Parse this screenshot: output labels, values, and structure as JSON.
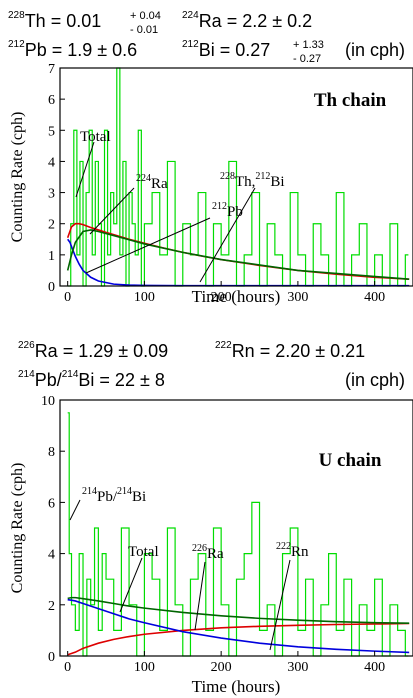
{
  "chart_data": [
    {
      "type": "line",
      "chain_label": "Th chain",
      "xlabel": "Time (hours)",
      "ylabel": "Counting Rate (cph)",
      "xlim": [
        -10,
        450
      ],
      "ylim": [
        0,
        7
      ],
      "xticks": [
        "0",
        "100",
        "200",
        "300",
        "400"
      ],
      "yticks": [
        "0",
        "1",
        "2",
        "3",
        "4",
        "5",
        "6",
        "7"
      ],
      "results": {
        "th228_name": "Th",
        "th228_mass": "228",
        "th228_value": " = 0.01",
        "th228_err_plus": "+ 0.04",
        "th228_err_minus": "- 0.01",
        "ra224_name": "Ra",
        "ra224_mass": "224",
        "ra224_value": " = 2.2 ± 0.2",
        "pb212_name": "Pb",
        "pb212_mass": "212",
        "pb212_value": " = 1.9 ± 0.6",
        "bi212_name": "Bi",
        "bi212_mass": "212",
        "bi212_value": " = 0.27",
        "bi212_err_plus": "+ 1.33",
        "bi212_err_minus": "- 0.27",
        "unit_note": "(in cph)"
      },
      "annotations": {
        "total": "Total",
        "ra_mass": "224",
        "ra": "Ra",
        "pb_mass": "212",
        "pb": "Pb",
        "th_mass": "228",
        "th": "Th,",
        "bi_mass": "212",
        "bi": "Bi"
      },
      "series": [
        {
          "color": "#00dd00",
          "x": [
            0,
            4,
            8,
            12,
            16,
            20,
            24,
            28,
            32,
            36,
            40,
            44,
            48,
            52,
            56,
            60,
            64,
            68,
            72,
            76,
            80,
            84,
            88,
            92,
            96,
            100,
            110,
            120,
            130,
            140,
            150,
            160,
            170,
            180,
            190,
            200,
            210,
            220,
            230,
            240,
            250,
            260,
            270,
            280,
            290,
            300,
            310,
            320,
            330,
            340,
            350,
            360,
            370,
            380,
            390,
            400,
            410,
            420,
            430,
            440
          ],
          "y": [
            0,
            2,
            5,
            1,
            4,
            0,
            3,
            5,
            1,
            4,
            2,
            0,
            5,
            1,
            3,
            2,
            7,
            1,
            4,
            0,
            3,
            2,
            1,
            5,
            0,
            2,
            3,
            1,
            4,
            0,
            2,
            1,
            3,
            0,
            2,
            1,
            4,
            0,
            1,
            3,
            0,
            2,
            1,
            0,
            3,
            1,
            0,
            2,
            1,
            0,
            3,
            0,
            1,
            2,
            0,
            1,
            0,
            2,
            0,
            1
          ]
        },
        {
          "color": "#dd0000",
          "x": [
            0,
            5,
            10,
            15,
            20,
            30,
            40,
            50,
            60,
            80,
            100,
            125,
            150,
            175,
            200,
            250,
            300,
            350,
            400,
            445
          ],
          "y": [
            1.55,
            1.9,
            2.0,
            2.0,
            1.97,
            1.88,
            1.8,
            1.72,
            1.65,
            1.5,
            1.37,
            1.22,
            1.08,
            0.96,
            0.85,
            0.66,
            0.5,
            0.38,
            0.28,
            0.22
          ]
        },
        {
          "color": "#0000dd",
          "x": [
            0,
            3,
            6,
            10,
            15,
            20,
            30,
            40,
            60,
            80,
            100,
            150,
            200,
            445
          ],
          "y": [
            1.5,
            1.4,
            1.2,
            0.95,
            0.7,
            0.5,
            0.28,
            0.16,
            0.06,
            0.03,
            0.02,
            0.01,
            0.01,
            0.01
          ]
        },
        {
          "color": "#006400",
          "x": [
            0,
            5,
            10,
            20,
            30,
            40,
            60,
            100,
            150,
            200,
            300,
            445
          ],
          "y": [
            0.5,
            1.0,
            1.4,
            1.75,
            1.8,
            1.75,
            1.62,
            1.35,
            1.08,
            0.85,
            0.5,
            0.22
          ]
        }
      ]
    },
    {
      "type": "line",
      "chain_label": "U chain",
      "xlabel": "Time (hours)",
      "ylabel": "Counting Rate (cph)",
      "xlim": [
        -10,
        450
      ],
      "ylim": [
        0,
        10
      ],
      "xticks": [
        "0",
        "100",
        "200",
        "300",
        "400"
      ],
      "yticks": [
        "0",
        "2",
        "4",
        "6",
        "8",
        "10"
      ],
      "results": {
        "ra226_name": "Ra",
        "ra226_mass": "226",
        "ra226_value": " = 1.29 ± 0.09",
        "rn222_name": "Rn",
        "rn222_mass": "222",
        "rn222_value": " = 2.20 ± 0.21",
        "pb214_name": "Pb/",
        "pb214_mass": "214",
        "bi214_name": "Bi",
        "bi214_mass": "214",
        "pbbi_value": " = 22 ± 8",
        "unit_note": "(in cph)"
      },
      "annotations": {
        "pb_mass": "214",
        "pb": "Pb/",
        "bi_mass": "214",
        "bi": "Bi",
        "total": "Total",
        "ra_mass": "226",
        "ra": "Ra",
        "rn_mass": "222",
        "rn": "Rn"
      },
      "series": [
        {
          "color": "#00dd00",
          "x": [
            0,
            2,
            5,
            10,
            15,
            20,
            25,
            30,
            35,
            40,
            45,
            50,
            60,
            70,
            80,
            90,
            100,
            110,
            120,
            130,
            140,
            150,
            160,
            170,
            180,
            190,
            200,
            210,
            220,
            230,
            240,
            250,
            260,
            270,
            280,
            290,
            300,
            310,
            320,
            330,
            340,
            350,
            360,
            370,
            380,
            390,
            400,
            410,
            420,
            430,
            440
          ],
          "y": [
            9.5,
            4,
            2,
            1,
            4,
            0,
            3,
            2,
            5,
            1,
            4,
            3,
            1,
            5,
            2,
            0,
            4,
            3,
            1,
            5,
            2,
            0,
            3,
            4,
            1,
            5,
            2,
            0,
            3,
            4,
            6,
            1,
            2,
            0,
            4,
            5,
            1,
            3,
            0,
            2,
            4,
            1,
            3,
            0,
            2,
            1,
            3,
            0,
            2,
            1,
            0
          ]
        },
        {
          "color": "#dd0000",
          "x": [
            0,
            10,
            20,
            40,
            60,
            80,
            100,
            150,
            200,
            250,
            300,
            350,
            400,
            445
          ],
          "y": [
            0.05,
            0.15,
            0.3,
            0.5,
            0.65,
            0.76,
            0.85,
            1.0,
            1.1,
            1.16,
            1.2,
            1.23,
            1.25,
            1.27
          ]
        },
        {
          "color": "#0000dd",
          "x": [
            0,
            5,
            10,
            20,
            40,
            60,
            80,
            100,
            150,
            200,
            250,
            300,
            350,
            400,
            445
          ],
          "y": [
            2.2,
            2.18,
            2.15,
            2.05,
            1.85,
            1.65,
            1.45,
            1.3,
            0.95,
            0.7,
            0.5,
            0.36,
            0.26,
            0.19,
            0.14
          ]
        },
        {
          "color": "#006400",
          "x": [
            0,
            5,
            10,
            20,
            40,
            60,
            80,
            100,
            150,
            200,
            250,
            300,
            350,
            400,
            445
          ],
          "y": [
            2.25,
            2.28,
            2.28,
            2.24,
            2.15,
            2.05,
            1.95,
            1.87,
            1.7,
            1.57,
            1.47,
            1.4,
            1.34,
            1.3,
            1.28
          ]
        }
      ]
    }
  ]
}
